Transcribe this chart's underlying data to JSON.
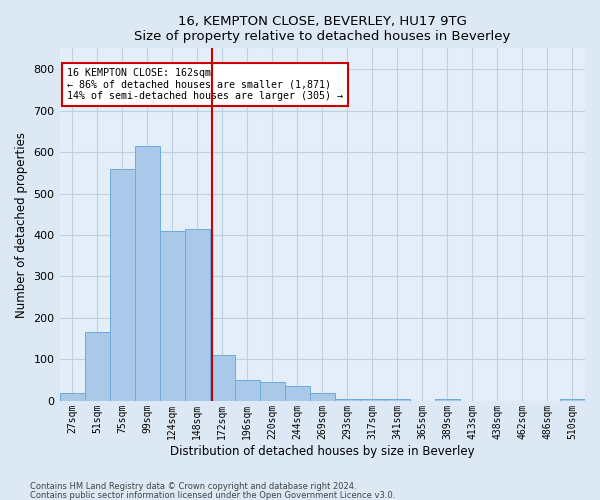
{
  "title": "16, KEMPTON CLOSE, BEVERLEY, HU17 9TG",
  "subtitle": "Size of property relative to detached houses in Beverley",
  "xlabel": "Distribution of detached houses by size in Beverley",
  "ylabel": "Number of detached properties",
  "footnote1": "Contains HM Land Registry data © Crown copyright and database right 2024.",
  "footnote2": "Contains public sector information licensed under the Open Government Licence v3.0.",
  "bar_labels": [
    "27sqm",
    "51sqm",
    "75sqm",
    "99sqm",
    "124sqm",
    "148sqm",
    "172sqm",
    "196sqm",
    "220sqm",
    "244sqm",
    "269sqm",
    "293sqm",
    "317sqm",
    "341sqm",
    "365sqm",
    "389sqm",
    "413sqm",
    "438sqm",
    "462sqm",
    "486sqm",
    "510sqm"
  ],
  "bar_values": [
    20,
    165,
    560,
    615,
    410,
    415,
    110,
    50,
    45,
    35,
    20,
    5,
    5,
    5,
    0,
    5,
    0,
    0,
    0,
    0,
    5
  ],
  "bar_color": "#aac8e8",
  "bar_edge_color": "#6aacdc",
  "bar_width": 1.0,
  "vline_x": 5.58,
  "vline_color": "#cc0000",
  "annotation_text": "16 KEMPTON CLOSE: 162sqm\n← 86% of detached houses are smaller (1,871)\n14% of semi-detached houses are larger (305) →",
  "annotation_box_color": "#cc0000",
  "annotation_bg": "#ffffff",
  "ylim": [
    0,
    850
  ],
  "yticks": [
    0,
    100,
    200,
    300,
    400,
    500,
    600,
    700,
    800
  ],
  "grid_color": "#c0d0e0",
  "bg_color": "#dce8f4",
  "plot_bg": "#e4eef8"
}
